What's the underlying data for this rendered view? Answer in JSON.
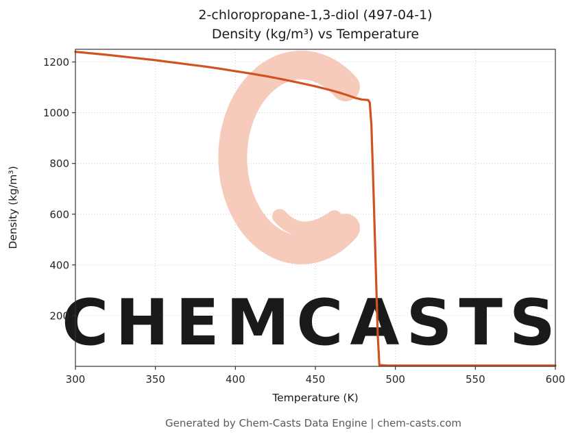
{
  "title_line1": "2-chloropropane-1,3-diol (497-04-1)",
  "title_line2": "Density (kg/m³) vs Temperature",
  "footer": "Generated by Chem-Casts Data Engine | chem-casts.com",
  "watermark": {
    "text": "CHEMCASTS",
    "text_color": "#f4c2b2",
    "logo_color": "#f6cbbc"
  },
  "chart_data": {
    "type": "line",
    "title": "2-chloropropane-1,3-diol (497-04-1) — Density (kg/m³) vs Temperature",
    "xlabel": "Temperature (K)",
    "ylabel": "Density (kg/m³)",
    "xlim": [
      300,
      600
    ],
    "ylim": [
      0,
      1250
    ],
    "xticks": [
      300,
      350,
      400,
      450,
      500,
      550,
      600
    ],
    "yticks": [
      200,
      400,
      600,
      800,
      1000,
      1200
    ],
    "grid": true,
    "legend": false,
    "line_color": "#d2521f",
    "series": [
      {
        "name": "Density",
        "x": [
          300,
          310,
          320,
          330,
          340,
          350,
          360,
          370,
          380,
          390,
          400,
          410,
          420,
          430,
          440,
          450,
          460,
          465,
          470,
          475,
          479,
          481,
          483,
          484,
          485,
          486,
          487,
          488,
          489,
          490,
          495,
          500,
          520,
          540,
          560,
          580,
          600
        ],
        "y": [
          1240,
          1234,
          1228,
          1221,
          1214,
          1207,
          1199,
          1191,
          1183,
          1174,
          1164,
          1154,
          1143,
          1131,
          1118,
          1104,
          1088,
          1079,
          1069,
          1058,
          1052,
          1051,
          1050,
          1040,
          950,
          760,
          550,
          330,
          120,
          5,
          3,
          3,
          3,
          3,
          3,
          3,
          3
        ]
      }
    ]
  }
}
